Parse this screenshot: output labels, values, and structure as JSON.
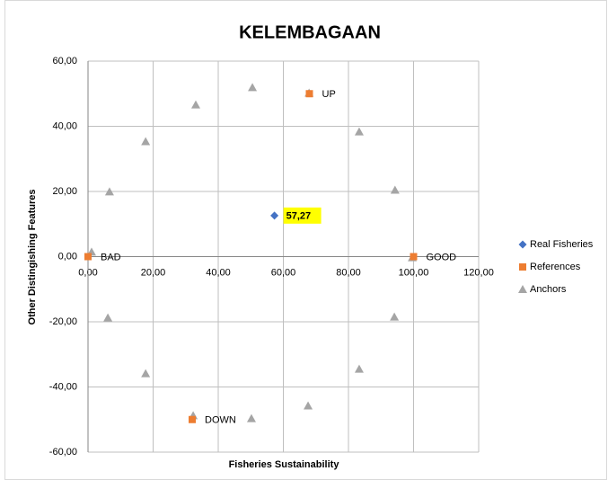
{
  "chart_data": {
    "type": "scatter",
    "title": "KELEMBAGAAN",
    "x_label": "Fisheries Sustainability",
    "y_label": "Other Distingishing Features",
    "xlim": [
      0,
      120
    ],
    "ylim": [
      -60,
      60
    ],
    "xticks": [
      {
        "value": 0,
        "label": "0,00"
      },
      {
        "value": 20,
        "label": "20,00"
      },
      {
        "value": 40,
        "label": "40,00"
      },
      {
        "value": 60,
        "label": "60,00"
      },
      {
        "value": 80,
        "label": "80,00"
      },
      {
        "value": 100,
        "label": "100,00"
      },
      {
        "value": 120,
        "label": "120,00"
      }
    ],
    "yticks": [
      {
        "value": -60,
        "label": "-60,00"
      },
      {
        "value": -40,
        "label": "-40,00"
      },
      {
        "value": -20,
        "label": "-20,00"
      },
      {
        "value": 0,
        "label": "0,00"
      },
      {
        "value": 20,
        "label": "20,00"
      },
      {
        "value": 40,
        "label": "40,00"
      },
      {
        "value": 60,
        "label": "60,00"
      }
    ],
    "grid": true,
    "legend": "right",
    "series": [
      {
        "name": "Real Fisheries",
        "color": "#4472c4",
        "marker": "diamond",
        "x": [
          57.27
        ],
        "y": [
          12.6
        ],
        "value_labels": [
          "57,27"
        ]
      },
      {
        "name": "References",
        "color": "#ed7d31",
        "marker": "square",
        "x": [
          100,
          0,
          68,
          32
        ],
        "y": [
          0,
          0,
          50,
          -50
        ],
        "labels": [
          "GOOD",
          "BAD",
          "UP",
          "DOWN"
        ]
      },
      {
        "name": "Anchors",
        "color": "#a5a5a5",
        "marker": "triangle",
        "x": [
          1.1,
          6.6,
          17.7,
          33.1,
          50.5,
          67.9,
          83.3,
          94.3,
          99.6,
          94.1,
          83.3,
          67.6,
          50.2,
          32.3,
          17.7,
          6.1
        ],
        "y": [
          1.4,
          19.9,
          35.3,
          46.6,
          51.9,
          50.2,
          38.3,
          20.4,
          -0.3,
          -18.5,
          -34.5,
          -45.8,
          -49.7,
          -48.8,
          -35.9,
          -18.8
        ]
      }
    ]
  }
}
